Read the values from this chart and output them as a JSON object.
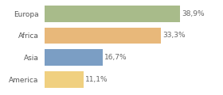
{
  "categories": [
    "Europa",
    "Africa",
    "Asia",
    "America"
  ],
  "values": [
    38.9,
    33.3,
    16.7,
    11.1
  ],
  "labels": [
    "38,9%",
    "33,3%",
    "16,7%",
    "11,1%"
  ],
  "bar_colors": [
    "#a8bb8a",
    "#e8b87a",
    "#7b9ec4",
    "#f0d080"
  ],
  "background_color": "#ffffff",
  "xlim": [
    0,
    48
  ],
  "bar_height": 0.75,
  "label_fontsize": 6.5,
  "category_fontsize": 6.5,
  "label_color": "#666666",
  "category_color": "#555555"
}
